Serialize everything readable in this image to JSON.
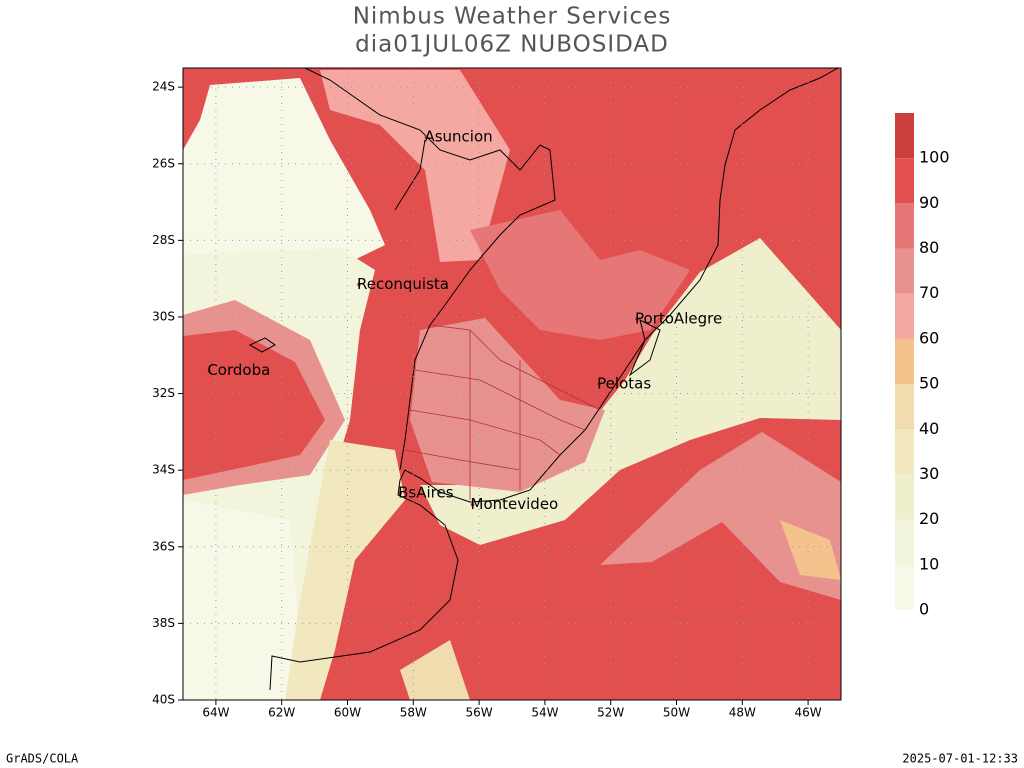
{
  "header": {
    "title": "Nimbus Weather Services",
    "subtitle": "dia01JUL06Z NUBOSIDAD"
  },
  "map": {
    "lon_range": [
      -65,
      -45
    ],
    "lat_range": [
      -40,
      -23.5
    ],
    "lat_ticks": [
      {
        "value": -24,
        "label": "24S"
      },
      {
        "value": -26,
        "label": "26S"
      },
      {
        "value": -28,
        "label": "28S"
      },
      {
        "value": -30,
        "label": "30S"
      },
      {
        "value": -32,
        "label": "32S"
      },
      {
        "value": -34,
        "label": "34S"
      },
      {
        "value": -36,
        "label": "36S"
      },
      {
        "value": -38,
        "label": "38S"
      },
      {
        "value": -40,
        "label": "40S"
      }
    ],
    "lon_ticks": [
      {
        "value": -64,
        "label": "64W"
      },
      {
        "value": -62,
        "label": "62W"
      },
      {
        "value": -60,
        "label": "60W"
      },
      {
        "value": -58,
        "label": "58W"
      },
      {
        "value": -56,
        "label": "56W"
      },
      {
        "value": -54,
        "label": "54W"
      },
      {
        "value": -52,
        "label": "52W"
      },
      {
        "value": -50,
        "label": "50W"
      },
      {
        "value": -48,
        "label": "48W"
      },
      {
        "value": -46,
        "label": "46W"
      }
    ],
    "cities": [
      {
        "label": "Asuncion",
        "lon": -57.6,
        "lat": -25.3
      },
      {
        "label": "Reconquista",
        "lon": -59.65,
        "lat": -29.15
      },
      {
        "label": "Cordoba",
        "lon": -64.2,
        "lat": -31.4
      },
      {
        "label": "PortoAlegre",
        "lon": -51.2,
        "lat": -30.05
      },
      {
        "label": "Pelotas",
        "lon": -52.35,
        "lat": -31.75
      },
      {
        "label": "BsAires",
        "lon": -58.4,
        "lat": -34.6
      },
      {
        "label": "Montevideo",
        "lon": -56.2,
        "lat": -34.9
      }
    ],
    "colorbar": {
      "levels": [
        0,
        10,
        20,
        30,
        40,
        50,
        60,
        70,
        80,
        90,
        100
      ],
      "colors": [
        "#f8f8e8",
        "#f3f4dc",
        "#efefce",
        "#f1e8c0",
        "#f0dcae",
        "#f4c28c",
        "#f5a8a2",
        "#e89290",
        "#e77777",
        "#e24f4f",
        "#cb3e3e"
      ]
    }
  },
  "footer": {
    "left": "GrADS/COLA",
    "right": "2025-07-01-12:33"
  }
}
